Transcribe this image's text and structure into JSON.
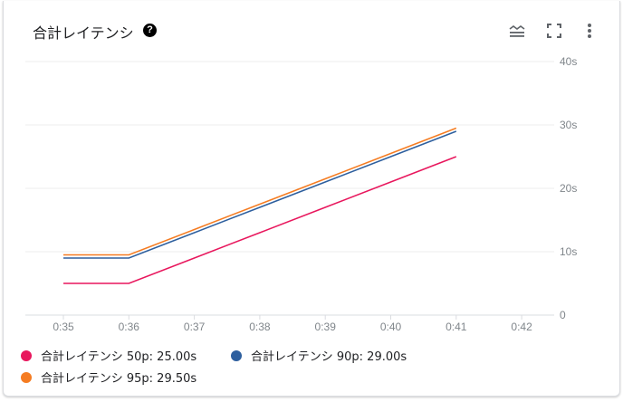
{
  "header": {
    "title": "合計レイテンシ",
    "help_icon": "help-circle-icon",
    "tools": [
      "legend-toggle-icon",
      "fullscreen-icon",
      "more-vert-icon"
    ]
  },
  "chart_data": {
    "type": "line",
    "title": "合計レイテンシ",
    "x": [
      "0:35",
      "0:36",
      "0:37",
      "0:38",
      "0:39",
      "0:40",
      "0:41"
    ],
    "x_ticks": [
      "0:35",
      "0:36",
      "0:37",
      "0:38",
      "0:39",
      "0:40",
      "0:41",
      "0:42"
    ],
    "y_ticks": [
      "0",
      "10s",
      "20s",
      "30s",
      "40s"
    ],
    "ylim": [
      0,
      40
    ],
    "grid": true,
    "legend_placement": "bottom",
    "series": [
      {
        "name": "合計レイテンシ 50p",
        "color": "#e8175d",
        "values": [
          5,
          5,
          9,
          13,
          17,
          21,
          25
        ],
        "legend_label": "合計レイテンシ 50p: 25.00s"
      },
      {
        "name": "合計レイテンシ 90p",
        "color": "#2e5f9e",
        "values": [
          9,
          9,
          13,
          17,
          21,
          25,
          29
        ],
        "legend_label": "合計レイテンシ 90p: 29.00s"
      },
      {
        "name": "合計レイテンシ 95p",
        "color": "#f57c22",
        "values": [
          9.5,
          9.5,
          13.5,
          17.5,
          21.5,
          25.5,
          29.5
        ],
        "legend_label": "合計レイテンシ 95p: 29.50s"
      }
    ]
  }
}
